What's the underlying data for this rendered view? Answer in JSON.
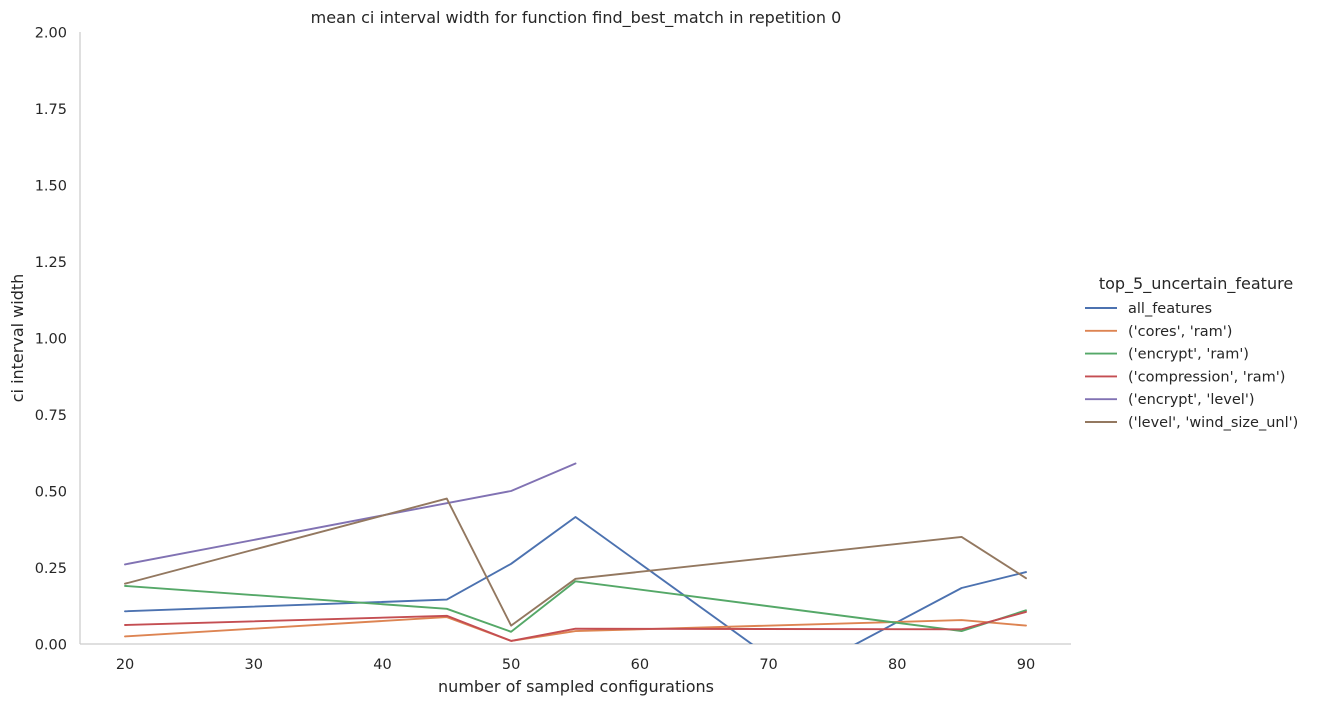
{
  "chart_data": {
    "type": "line",
    "title": "mean ci interval width for function find_best_match in repetition 0",
    "xlabel": "number of sampled configurations",
    "ylabel": "ci interval width",
    "xlim": [
      16.5,
      93.5
    ],
    "ylim": [
      0,
      2
    ],
    "xticks": [
      20,
      30,
      40,
      50,
      60,
      70,
      80,
      90
    ],
    "xtick_labels": [
      "20",
      "30",
      "40",
      "50",
      "60",
      "70",
      "80",
      "90"
    ],
    "yticks": [
      0,
      0.25,
      0.5,
      0.75,
      1.0,
      1.25,
      1.5,
      1.75,
      2.0
    ],
    "ytick_labels": [
      "0.00",
      "0.25",
      "0.50",
      "0.75",
      "1.00",
      "1.25",
      "1.50",
      "1.75",
      "2.00"
    ],
    "grid": false,
    "legend_title": "top_5_uncertain_feature",
    "legend_position": "center-right, outside plot",
    "series": [
      {
        "name": "all_features",
        "color": "#4c72b0",
        "x": [
          20,
          45,
          50,
          55,
          70,
          75,
          85,
          90
        ],
        "y": [
          0.107,
          0.145,
          0.262,
          0.415,
          -0.04,
          -0.04,
          0.183,
          0.235
        ]
      },
      {
        "name": "('cores', 'ram')",
        "color": "#dd8452",
        "x": [
          20,
          45,
          50,
          55,
          85,
          90
        ],
        "y": [
          0.025,
          0.088,
          0.01,
          0.042,
          0.078,
          0.06
        ]
      },
      {
        "name": "('encrypt', 'ram')",
        "color": "#55a868",
        "x": [
          20,
          45,
          50,
          55,
          85,
          90
        ],
        "y": [
          0.19,
          0.115,
          0.04,
          0.205,
          0.042,
          0.11
        ]
      },
      {
        "name": "('compression', 'ram')",
        "color": "#c44e52",
        "x": [
          20,
          45,
          50,
          55,
          85,
          90
        ],
        "y": [
          0.062,
          0.092,
          0.01,
          0.05,
          0.048,
          0.105
        ]
      },
      {
        "name": "('encrypt', 'level')",
        "color": "#8172b3",
        "x": [
          20,
          45,
          50,
          55
        ],
        "y": [
          0.26,
          0.46,
          0.5,
          0.59
        ]
      },
      {
        "name": "('level', 'wind_size_unl')",
        "color": "#937860",
        "x": [
          20,
          45,
          50,
          55,
          85,
          90
        ],
        "y": [
          0.197,
          0.475,
          0.06,
          0.213,
          0.35,
          0.215
        ]
      }
    ]
  }
}
